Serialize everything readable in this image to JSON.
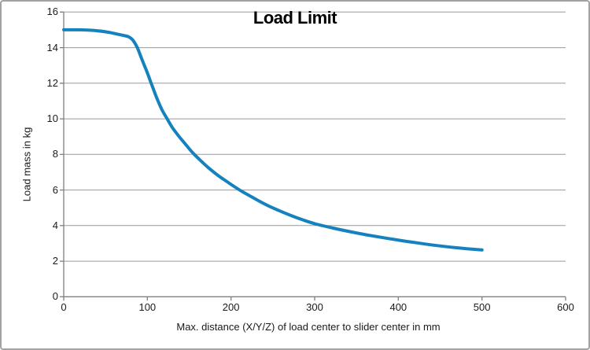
{
  "chart_data": {
    "type": "line",
    "title": "Load Limit",
    "xlabel": "Max. distance (X/Y/Z) of load center to slider center in mm",
    "ylabel": "Load mass in kg",
    "xlim": [
      0,
      600
    ],
    "ylim": [
      0,
      16
    ],
    "x_ticks": [
      0,
      100,
      200,
      300,
      400,
      500,
      600
    ],
    "y_ticks": [
      0,
      2,
      4,
      6,
      8,
      10,
      12,
      14,
      16
    ],
    "grid": "horizontal-only",
    "legend_position": "none",
    "series": [
      {
        "name": "load-limit-curve",
        "color": "#1581BE",
        "points": [
          [
            0,
            15.0
          ],
          [
            20,
            15.0
          ],
          [
            40,
            14.95
          ],
          [
            55,
            14.85
          ],
          [
            65,
            14.75
          ],
          [
            72,
            14.68
          ],
          [
            78,
            14.6
          ],
          [
            83,
            14.4
          ],
          [
            88,
            14.0
          ],
          [
            93,
            13.4
          ],
          [
            99,
            12.7
          ],
          [
            105,
            11.95
          ],
          [
            111,
            11.2
          ],
          [
            117,
            10.55
          ],
          [
            123,
            10.05
          ],
          [
            130,
            9.5
          ],
          [
            138,
            9.0
          ],
          [
            146,
            8.55
          ],
          [
            154,
            8.1
          ],
          [
            163,
            7.68
          ],
          [
            173,
            7.25
          ],
          [
            185,
            6.8
          ],
          [
            198,
            6.38
          ],
          [
            212,
            5.95
          ],
          [
            227,
            5.55
          ],
          [
            242,
            5.17
          ],
          [
            257,
            4.85
          ],
          [
            272,
            4.56
          ],
          [
            287,
            4.3
          ],
          [
            302,
            4.08
          ],
          [
            322,
            3.86
          ],
          [
            342,
            3.66
          ],
          [
            362,
            3.48
          ],
          [
            382,
            3.32
          ],
          [
            402,
            3.17
          ],
          [
            422,
            3.03
          ],
          [
            442,
            2.9
          ],
          [
            462,
            2.79
          ],
          [
            482,
            2.7
          ],
          [
            500,
            2.63
          ]
        ]
      }
    ]
  },
  "colors": {
    "line": "#1581BE",
    "gridline": "#9a9a9a",
    "axis": "#7f7f7f",
    "text": "#1a1a1a",
    "title_text": "#000000",
    "frame_border": "#a2a2a2",
    "background": "#ffffff"
  }
}
